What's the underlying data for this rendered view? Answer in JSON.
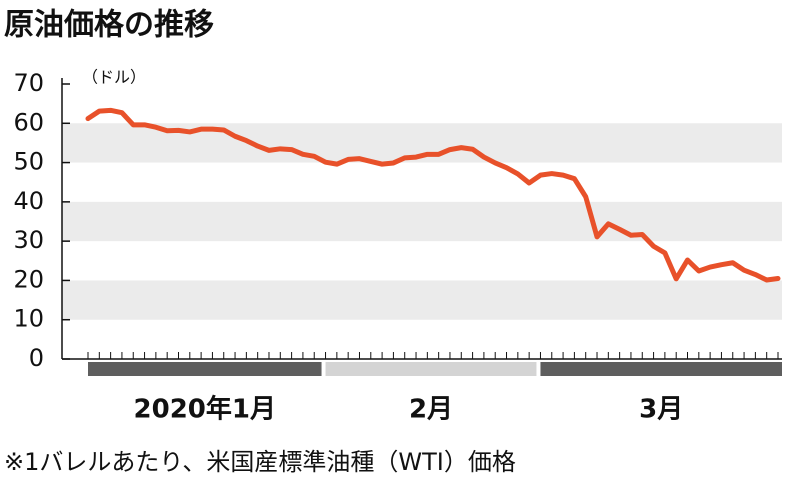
{
  "chart_data": {
    "type": "line",
    "title": "原油価格の推移",
    "y_unit": "（ドル）",
    "note": "※1バレルあたり、米国産標準油種（WTI）価格",
    "categories": [
      "2020年1月",
      null,
      null,
      null,
      null,
      null,
      null,
      null,
      null,
      null,
      null,
      null,
      null,
      null,
      null,
      null,
      null,
      null,
      null,
      null,
      null,
      "2月",
      null,
      null,
      null,
      null,
      null,
      null,
      null,
      null,
      null,
      null,
      null,
      null,
      null,
      null,
      null,
      null,
      null,
      null,
      "3月",
      null,
      null,
      null,
      null,
      null,
      null,
      null,
      null,
      null,
      null,
      null,
      null,
      null,
      null,
      null,
      null,
      null,
      null,
      null,
      null,
      null
    ],
    "values": [
      61.2,
      63.1,
      63.3,
      62.7,
      59.6,
      59.6,
      59.0,
      58.1,
      58.2,
      57.8,
      58.5,
      58.5,
      58.3,
      56.7,
      55.6,
      54.2,
      53.1,
      53.5,
      53.3,
      52.1,
      51.6,
      50.1,
      49.6,
      50.8,
      51.0,
      50.3,
      49.6,
      49.9,
      51.2,
      51.4,
      52.1,
      52.1,
      53.3,
      53.8,
      53.4,
      51.4,
      49.9,
      48.7,
      47.1,
      44.8,
      46.8,
      47.2,
      46.8,
      45.9,
      41.3,
      31.1,
      34.4,
      33.0,
      31.5,
      31.7,
      28.7,
      27.0,
      20.4,
      25.2,
      22.4,
      23.4,
      24.0,
      24.5,
      22.6,
      21.5,
      20.1,
      20.5
    ],
    "color": "#e8512a",
    "band_colors": [
      "#5e5e5e",
      "#d4d4d4"
    ],
    "ylim": [
      0,
      70
    ],
    "yticks": [
      0,
      10,
      20,
      30,
      40,
      50,
      60,
      70
    ]
  }
}
